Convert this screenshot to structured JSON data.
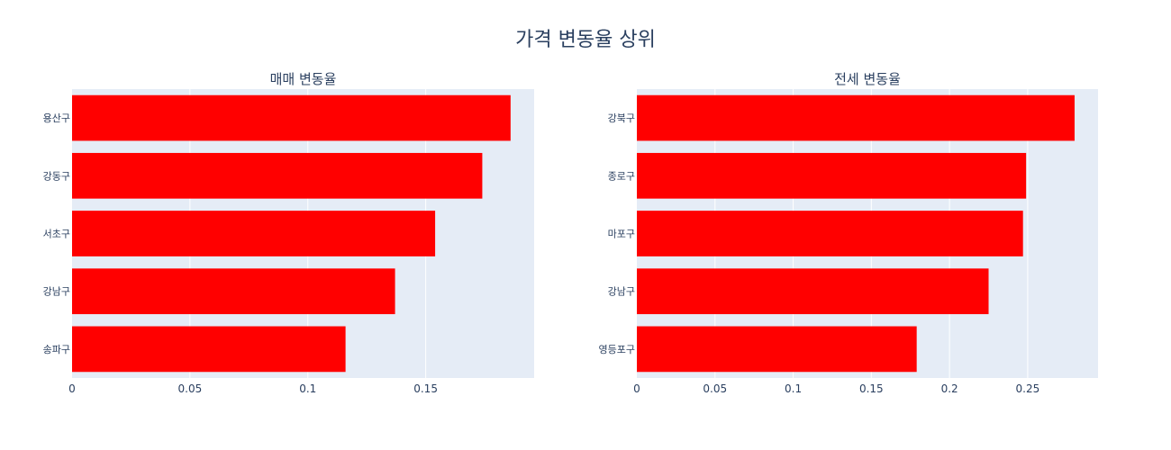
{
  "title": "가격 변동율 상위",
  "bar_color": "#ff0000",
  "plot_bg": "#e5ecf6",
  "chart_data": [
    {
      "type": "bar",
      "orientation": "horizontal",
      "title": "매매 변동율",
      "categories": [
        "용산구",
        "강동구",
        "서초구",
        "강남구",
        "송파구"
      ],
      "values": [
        0.186,
        0.174,
        0.154,
        0.137,
        0.116
      ],
      "xlim": [
        0,
        0.196
      ],
      "xticks": [
        0,
        0.05,
        0.1,
        0.15
      ],
      "xtick_labels": [
        "0",
        "0.05",
        "0.1",
        "0.15"
      ],
      "grid": true
    },
    {
      "type": "bar",
      "orientation": "horizontal",
      "title": "전세 변동율",
      "categories": [
        "강북구",
        "종로구",
        "마포구",
        "강남구",
        "영등포구"
      ],
      "values": [
        0.28,
        0.249,
        0.247,
        0.225,
        0.179
      ],
      "xlim": [
        0,
        0.295
      ],
      "xticks": [
        0,
        0.05,
        0.1,
        0.15,
        0.2,
        0.25
      ],
      "xtick_labels": [
        "0",
        "0.05",
        "0.1",
        "0.15",
        "0.2",
        "0.25"
      ],
      "grid": true
    }
  ]
}
